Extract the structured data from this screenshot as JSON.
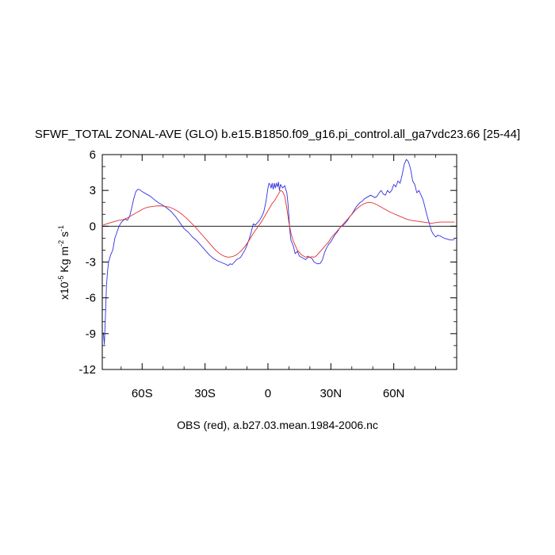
{
  "chart_data": {
    "type": "line",
    "title": "SFWF_TOTAL ZONAL-AVE (GLO) b.e15.B1850.f09_g16.pi_control.all_ga7vdc23.66 [25-44]",
    "ylabel_parts": {
      "prefix": "x10",
      "exp1": "-5",
      "mid": " Kg m",
      "exp2": "-2",
      "mid2": " s",
      "exp3": "-1"
    },
    "caption": "OBS (red), a.b27.03.mean.1984-2006.nc",
    "xlim": [
      -79,
      90
    ],
    "ylim": [
      -12,
      6
    ],
    "x_ticks": [
      {
        "value": -60,
        "label": "60S"
      },
      {
        "value": -30,
        "label": "30S"
      },
      {
        "value": 0,
        "label": "0"
      },
      {
        "value": 30,
        "label": "30N"
      },
      {
        "value": 60,
        "label": "60N"
      }
    ],
    "y_ticks": [
      {
        "value": 6,
        "label": "6"
      },
      {
        "value": 3,
        "label": "3"
      },
      {
        "value": 0,
        "label": "0"
      },
      {
        "value": -3,
        "label": "-3"
      },
      {
        "value": -6,
        "label": "-6"
      },
      {
        "value": -9,
        "label": "-9"
      },
      {
        "value": -12,
        "label": "-12"
      }
    ],
    "zero_line": true,
    "colors": {
      "model": "#3030e0",
      "obs": "#e03030",
      "frame": "#000000"
    },
    "series": [
      {
        "id": "model",
        "points": [
          [
            -78.5,
            -8.9
          ],
          [
            -78,
            -9.9
          ],
          [
            -77.5,
            -7.5
          ],
          [
            -77,
            -5
          ],
          [
            -76.5,
            -3.8
          ],
          [
            -76,
            -3
          ],
          [
            -75,
            -2.4
          ],
          [
            -74,
            -2
          ],
          [
            -73,
            -1
          ],
          [
            -72,
            -0.5
          ],
          [
            -71,
            0
          ],
          [
            -70,
            0.3
          ],
          [
            -69,
            0.5
          ],
          [
            -68,
            0.6
          ],
          [
            -67,
            0.5
          ],
          [
            -66,
            0.8
          ],
          [
            -65,
            1.5
          ],
          [
            -64,
            2.3
          ],
          [
            -63,
            2.9
          ],
          [
            -62,
            3.1
          ],
          [
            -61,
            3.05
          ],
          [
            -60,
            2.9
          ],
          [
            -58,
            2.7
          ],
          [
            -56,
            2.5
          ],
          [
            -54,
            2.2
          ],
          [
            -52,
            1.95
          ],
          [
            -50,
            1.75
          ],
          [
            -48,
            1.5
          ],
          [
            -46,
            1.2
          ],
          [
            -44,
            0.8
          ],
          [
            -42,
            0.3
          ],
          [
            -40,
            -0.2
          ],
          [
            -38,
            -0.5
          ],
          [
            -36,
            -0.9
          ],
          [
            -34,
            -1.2
          ],
          [
            -32,
            -1.6
          ],
          [
            -30,
            -2
          ],
          [
            -28,
            -2.4
          ],
          [
            -26,
            -2.7
          ],
          [
            -24,
            -2.9
          ],
          [
            -22,
            -3.05
          ],
          [
            -20,
            -3.2
          ],
          [
            -19,
            -3.3
          ],
          [
            -18,
            -3.15
          ],
          [
            -17,
            -3.2
          ],
          [
            -16,
            -3
          ],
          [
            -15,
            -2.8
          ],
          [
            -14,
            -2.7
          ],
          [
            -13,
            -2.6
          ],
          [
            -12,
            -2.3
          ],
          [
            -11,
            -2
          ],
          [
            -10,
            -1.6
          ],
          [
            -9,
            -1.1
          ],
          [
            -8,
            -0.5
          ],
          [
            -7,
            0.2
          ],
          [
            -6,
            0.1
          ],
          [
            -5,
            0.3
          ],
          [
            -4,
            0.5
          ],
          [
            -3,
            0.8
          ],
          [
            -2,
            1.2
          ],
          [
            -1,
            2
          ],
          [
            0,
            3.2
          ],
          [
            0.5,
            3.6
          ],
          [
            1,
            3.5
          ],
          [
            1.5,
            3.2
          ],
          [
            2,
            3.6
          ],
          [
            2.5,
            3.1
          ],
          [
            3,
            3.6
          ],
          [
            3.5,
            3.2
          ],
          [
            4,
            3.6
          ],
          [
            4.5,
            3.3
          ],
          [
            5,
            3.7
          ],
          [
            5.5,
            3
          ],
          [
            6,
            3.5
          ],
          [
            7,
            3.2
          ],
          [
            8,
            3.4
          ],
          [
            9,
            2.8
          ],
          [
            9.5,
            2
          ],
          [
            10,
            0.8
          ],
          [
            10.5,
            -0.5
          ],
          [
            11,
            -1.2
          ],
          [
            12,
            -1.6
          ],
          [
            13,
            -2.3
          ],
          [
            14,
            -2.1
          ],
          [
            15,
            -2.5
          ],
          [
            16,
            -2.6
          ],
          [
            17,
            -2.7
          ],
          [
            18,
            -2.8
          ],
          [
            19,
            -2.6
          ],
          [
            20,
            -2.6
          ],
          [
            21,
            -2.7
          ],
          [
            22,
            -3
          ],
          [
            23,
            -3.1
          ],
          [
            24,
            -3.15
          ],
          [
            25,
            -3.1
          ],
          [
            26,
            -2.8
          ],
          [
            27,
            -2.2
          ],
          [
            28,
            -1.8
          ],
          [
            29,
            -1.5
          ],
          [
            30,
            -1.3
          ],
          [
            31,
            -1
          ],
          [
            32,
            -0.7
          ],
          [
            33,
            -0.5
          ],
          [
            34,
            -0.2
          ],
          [
            35,
            0
          ],
          [
            36,
            0.1
          ],
          [
            37,
            0.3
          ],
          [
            38,
            0.5
          ],
          [
            39,
            0.8
          ],
          [
            40,
            1
          ],
          [
            41,
            1.3
          ],
          [
            42,
            1.6
          ],
          [
            43,
            1.8
          ],
          [
            44,
            2
          ],
          [
            45,
            2.1
          ],
          [
            46,
            2.3
          ],
          [
            47,
            2.4
          ],
          [
            48,
            2.5
          ],
          [
            49,
            2.6
          ],
          [
            50,
            2.5
          ],
          [
            51,
            2.4
          ],
          [
            52,
            2.5
          ],
          [
            53,
            2.8
          ],
          [
            54,
            3
          ],
          [
            55,
            2.7
          ],
          [
            56,
            2.6
          ],
          [
            57,
            3
          ],
          [
            58,
            2.8
          ],
          [
            59,
            3
          ],
          [
            60,
            3.5
          ],
          [
            61,
            3.3
          ],
          [
            62,
            3.8
          ],
          [
            63,
            3.6
          ],
          [
            64,
            4.3
          ],
          [
            65,
            5.2
          ],
          [
            66,
            5.6
          ],
          [
            67,
            5.4
          ],
          [
            68,
            4.8
          ],
          [
            69,
            3.8
          ],
          [
            70,
            3.5
          ],
          [
            71,
            2.8
          ],
          [
            72,
            3
          ],
          [
            73,
            2.6
          ],
          [
            74,
            2.2
          ],
          [
            75,
            1.5
          ],
          [
            76,
            0.8
          ],
          [
            77,
            0.2
          ],
          [
            78,
            -0.4
          ],
          [
            79,
            -0.7
          ],
          [
            80,
            -0.9
          ],
          [
            81,
            -0.75
          ],
          [
            82,
            -0.8
          ],
          [
            83,
            -0.9
          ],
          [
            84,
            -1
          ],
          [
            85,
            -1.05
          ],
          [
            86,
            -1.1
          ],
          [
            87,
            -1.15
          ],
          [
            88,
            -1.15
          ],
          [
            89,
            -1.1
          ]
        ]
      },
      {
        "id": "obs",
        "points": [
          [
            -78.5,
            0.1
          ],
          [
            -77,
            0.2
          ],
          [
            -75,
            0.3
          ],
          [
            -73,
            0.4
          ],
          [
            -71,
            0.5
          ],
          [
            -69,
            0.55
          ],
          [
            -67,
            0.7
          ],
          [
            -65,
            0.9
          ],
          [
            -63,
            1.1
          ],
          [
            -61,
            1.3
          ],
          [
            -59,
            1.5
          ],
          [
            -57,
            1.6
          ],
          [
            -55,
            1.65
          ],
          [
            -53,
            1.7
          ],
          [
            -51,
            1.7
          ],
          [
            -49,
            1.65
          ],
          [
            -47,
            1.6
          ],
          [
            -45,
            1.45
          ],
          [
            -43,
            1.25
          ],
          [
            -41,
            1
          ],
          [
            -39,
            0.7
          ],
          [
            -37,
            0.35
          ],
          [
            -35,
            0
          ],
          [
            -33,
            -0.4
          ],
          [
            -31,
            -0.8
          ],
          [
            -29,
            -1.2
          ],
          [
            -27,
            -1.6
          ],
          [
            -25,
            -2
          ],
          [
            -23,
            -2.3
          ],
          [
            -21,
            -2.5
          ],
          [
            -19,
            -2.6
          ],
          [
            -17,
            -2.55
          ],
          [
            -15,
            -2.4
          ],
          [
            -13,
            -2.1
          ],
          [
            -11,
            -1.7
          ],
          [
            -9,
            -1.2
          ],
          [
            -7,
            -0.6
          ],
          [
            -5,
            -0.1
          ],
          [
            -3,
            0.4
          ],
          [
            -1,
            1
          ],
          [
            0,
            1.3
          ],
          [
            1,
            1.6
          ],
          [
            2,
            1.9
          ],
          [
            3,
            2.1
          ],
          [
            4,
            2.4
          ],
          [
            5,
            2.7
          ],
          [
            6,
            3
          ],
          [
            7,
            2.9
          ],
          [
            8,
            2.5
          ],
          [
            9,
            1.5
          ],
          [
            10,
            0.3
          ],
          [
            11,
            -0.6
          ],
          [
            12,
            -1.2
          ],
          [
            13,
            -1.6
          ],
          [
            14,
            -2
          ],
          [
            15,
            -2.2
          ],
          [
            16,
            -2.4
          ],
          [
            17,
            -2.5
          ],
          [
            18,
            -2.6
          ],
          [
            19,
            -2.5
          ],
          [
            20,
            -2.6
          ],
          [
            21,
            -2.55
          ],
          [
            22,
            -2.6
          ],
          [
            23,
            -2.5
          ],
          [
            24,
            -2.3
          ],
          [
            25,
            -2.1
          ],
          [
            26,
            -1.9
          ],
          [
            27,
            -1.7
          ],
          [
            28,
            -1.5
          ],
          [
            29,
            -1.3
          ],
          [
            30,
            -1
          ],
          [
            32,
            -0.6
          ],
          [
            34,
            -0.2
          ],
          [
            36,
            0.2
          ],
          [
            38,
            0.6
          ],
          [
            40,
            1
          ],
          [
            42,
            1.4
          ],
          [
            44,
            1.7
          ],
          [
            46,
            1.9
          ],
          [
            48,
            2
          ],
          [
            50,
            1.95
          ],
          [
            52,
            1.8
          ],
          [
            54,
            1.6
          ],
          [
            56,
            1.4
          ],
          [
            58,
            1.2
          ],
          [
            60,
            1.05
          ],
          [
            62,
            0.9
          ],
          [
            64,
            0.75
          ],
          [
            66,
            0.6
          ],
          [
            68,
            0.5
          ],
          [
            70,
            0.45
          ],
          [
            72,
            0.4
          ],
          [
            74,
            0.35
          ],
          [
            76,
            0.3
          ],
          [
            78,
            0.25
          ],
          [
            80,
            0.3
          ],
          [
            82,
            0.35
          ],
          [
            84,
            0.35
          ],
          [
            86,
            0.35
          ],
          [
            88,
            0.35
          ],
          [
            89,
            0.35
          ]
        ]
      }
    ]
  }
}
